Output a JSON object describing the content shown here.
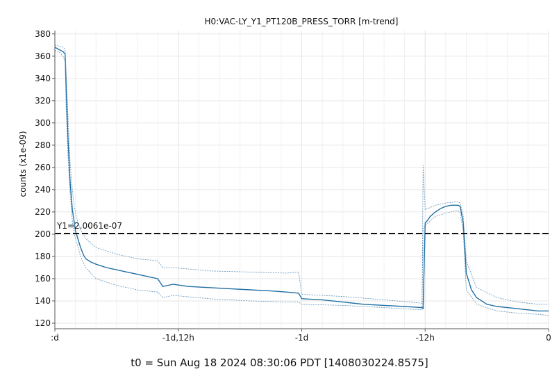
{
  "chart_data": {
    "type": "line",
    "title": "H0:VAC-LY_Y1_PT120B_PRESS_TORR [m-trend]",
    "ylabel": "counts (x1e-09)",
    "xlabel": "",
    "ylim": [
      115,
      383
    ],
    "yticks": [
      120,
      140,
      160,
      180,
      200,
      220,
      240,
      260,
      280,
      300,
      320,
      340,
      360,
      380
    ],
    "xlim": [
      -48,
      0
    ],
    "xticks": [
      {
        "value": -48,
        "label": ":d"
      },
      {
        "value": -36,
        "label": "-1d,12h"
      },
      {
        "value": -24,
        "label": "-1d"
      },
      {
        "value": -12,
        "label": "-12h"
      },
      {
        "value": 0,
        "label": "0"
      }
    ],
    "x_units": "hours",
    "grid": true,
    "colors": {
      "line": "#1f6fa3",
      "envelope": "#5b8fb8",
      "reference": "#111111"
    },
    "reference_line": {
      "y": 200.61,
      "label": "Y1=2.0061e-07"
    },
    "series": [
      {
        "role": "mean",
        "x": [
          -48,
          -47.6,
          -47.2,
          -47.0,
          -46.9,
          -46.7,
          -46.5,
          -46.3,
          -46.1,
          -46.0,
          -45.8,
          -45.5,
          -45.2,
          -45.0,
          -44.5,
          -44.0,
          -43.0,
          -42.0,
          -41.0,
          -40.0,
          -39.0,
          -38.0,
          -37.5,
          -36.5,
          -35.0,
          -33.0,
          -31.0,
          -29.0,
          -27.0,
          -25.5,
          -24.3,
          -24.0,
          -22.0,
          -20.0,
          -18.0,
          -16.0,
          -14.0,
          -12.3,
          -12.2,
          -12.0,
          -11.8,
          -11.5,
          -11.0,
          -10.5,
          -10.0,
          -9.5,
          -9.0,
          -8.8,
          -8.6,
          -8.3,
          -8.0,
          -7.5,
          -7.0,
          -6.0,
          -5.0,
          -4.0,
          -3.0,
          -2.0,
          -1.0,
          0
        ],
        "values": [
          368,
          366,
          364,
          362,
          330,
          280,
          245,
          222,
          210,
          203,
          197,
          188,
          181,
          178,
          175,
          173,
          170,
          168,
          166,
          164,
          162,
          160,
          153,
          155,
          153,
          152,
          151,
          150,
          149,
          148,
          147,
          142,
          141,
          139,
          137,
          136,
          135,
          134,
          133,
          210,
          212,
          216,
          220,
          223,
          225,
          226,
          226,
          226,
          225,
          210,
          165,
          150,
          143,
          137,
          135,
          134,
          133,
          132,
          131,
          131
        ]
      },
      {
        "role": "max",
        "x": [
          -48,
          -47.6,
          -47.2,
          -47.0,
          -46.9,
          -46.7,
          -46.5,
          -46.3,
          -46.1,
          -45.8,
          -45.5,
          -45.0,
          -44.0,
          -42.0,
          -40.0,
          -38.0,
          -37.5,
          -36.5,
          -33.0,
          -29.0,
          -25.5,
          -24.3,
          -24.0,
          -20.0,
          -16.0,
          -12.3,
          -12.2,
          -12.0,
          -11.5,
          -11.0,
          -10.0,
          -9.0,
          -8.8,
          -8.6,
          -8.3,
          -8.0,
          -7.0,
          -5.0,
          -3.0,
          -1.0,
          0
        ],
        "values": [
          370,
          369,
          368,
          366,
          345,
          300,
          262,
          240,
          224,
          212,
          204,
          196,
          188,
          182,
          178,
          176,
          170,
          170,
          167,
          166,
          165,
          166,
          146,
          144,
          141,
          138,
          262,
          222,
          224,
          226,
          228,
          229,
          229,
          228,
          216,
          176,
          152,
          143,
          139,
          137,
          137
        ]
      },
      {
        "role": "min",
        "x": [
          -48,
          -47.6,
          -47.2,
          -47.0,
          -46.9,
          -46.7,
          -46.5,
          -46.3,
          -46.1,
          -45.8,
          -45.5,
          -45.0,
          -44.0,
          -42.0,
          -40.0,
          -38.0,
          -37.5,
          -36.5,
          -33.0,
          -29.0,
          -25.5,
          -24.3,
          -24.0,
          -20.0,
          -16.0,
          -12.3,
          -12.2,
          -12.0,
          -11.5,
          -11.0,
          -10.0,
          -9.0,
          -8.8,
          -8.6,
          -8.3,
          -8.0,
          -7.0,
          -5.0,
          -3.0,
          -1.0,
          0
        ],
        "values": [
          365,
          364,
          360,
          355,
          312,
          265,
          235,
          212,
          200,
          190,
          180,
          170,
          160,
          154,
          150,
          148,
          143,
          145,
          142,
          140,
          139,
          139,
          137,
          136,
          134,
          132,
          205,
          208,
          212,
          216,
          219,
          221,
          221,
          219,
          202,
          150,
          137,
          131,
          129,
          128,
          127
        ]
      }
    ]
  },
  "footer": {
    "t0": "t0 = Sun Aug 18 2024 08:30:06 PDT [1408030224.8575]"
  }
}
